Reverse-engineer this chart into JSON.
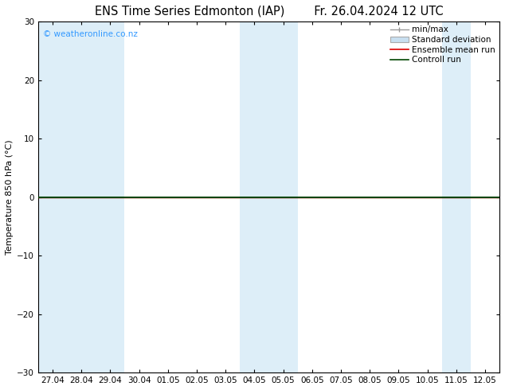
{
  "title_left": "ENS Time Series Edmonton (IAP)",
  "title_right": "Fr. 26.04.2024 12 UTC",
  "ylabel": "Temperature 850 hPa (°C)",
  "ylim": [
    -30,
    30
  ],
  "yticks": [
    -30,
    -20,
    -10,
    0,
    10,
    20,
    30
  ],
  "xtick_labels": [
    "27.04",
    "28.04",
    "29.04",
    "30.04",
    "01.05",
    "02.05",
    "03.05",
    "04.05",
    "05.05",
    "06.05",
    "07.05",
    "08.05",
    "09.05",
    "10.05",
    "11.05",
    "12.05"
  ],
  "watermark": "© weatheronline.co.nz",
  "watermark_color": "#3399ff",
  "background_color": "#ffffff",
  "plot_bg_color": "#ffffff",
  "shaded_columns": [
    0,
    1,
    2,
    7,
    8,
    14
  ],
  "shaded_color": "#ddeef8",
  "ensemble_mean_color": "#dd0000",
  "control_run_color": "#004400",
  "minmax_color": "#999999",
  "stddev_color": "#c8dff0",
  "legend_fontsize": 7.5,
  "title_fontsize": 10.5,
  "ylabel_fontsize": 8,
  "tick_labelsize": 7.5
}
